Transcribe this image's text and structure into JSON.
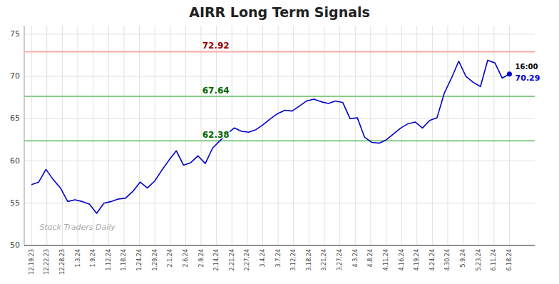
{
  "chart_data": {
    "type": "line",
    "title": "AIRR Long Term Signals",
    "color": "#0000cc",
    "values": [
      57.2,
      57.5,
      59.0,
      57.8,
      56.8,
      55.2,
      55.4,
      55.2,
      54.9,
      53.8,
      55.0,
      55.2,
      55.5,
      55.6,
      56.4,
      57.5,
      56.8,
      57.6,
      58.9,
      60.1,
      61.2,
      59.5,
      59.8,
      60.6,
      59.7,
      61.5,
      62.38,
      63.2,
      63.9,
      63.5,
      63.4,
      63.7,
      64.3,
      65.0,
      65.6,
      66.0,
      65.9,
      66.5,
      67.1,
      67.3,
      67.0,
      66.8,
      67.1,
      66.9,
      65.0,
      65.1,
      62.8,
      62.2,
      62.1,
      62.5,
      63.2,
      63.9,
      64.4,
      64.6,
      63.9,
      64.8,
      65.1,
      68.0,
      69.8,
      71.8,
      70.0,
      69.3,
      68.8,
      71.9,
      71.6,
      69.8,
      70.29
    ],
    "xlim": [
      -1,
      69.5
    ],
    "xticks": [
      {
        "value": 0,
        "label": "12.19.23"
      },
      {
        "value": 2.129032,
        "label": "12.22.23"
      },
      {
        "value": 4.258065,
        "label": "12.28.23"
      },
      {
        "value": 6.387097,
        "label": "1.3.24"
      },
      {
        "value": 8.516129,
        "label": "1.9.24"
      },
      {
        "value": 10.645161,
        "label": "1.12.24"
      },
      {
        "value": 12.774194,
        "label": "1.18.24"
      },
      {
        "value": 14.903226,
        "label": "1.24.24"
      },
      {
        "value": 17.032258,
        "label": "1.29.24"
      },
      {
        "value": 19.16129,
        "label": "2.1.24"
      },
      {
        "value": 21.290323,
        "label": "2.6.24"
      },
      {
        "value": 23.419355,
        "label": "2.9.24"
      },
      {
        "value": 25.548387,
        "label": "2.14.24"
      },
      {
        "value": 27.677419,
        "label": "2.21.24"
      },
      {
        "value": 29.806452,
        "label": "2.27.24"
      },
      {
        "value": 31.935484,
        "label": "3.4.24"
      },
      {
        "value": 34.064516,
        "label": "3.7.24"
      },
      {
        "value": 36.193548,
        "label": "3.12.24"
      },
      {
        "value": 38.322581,
        "label": "3.18.24"
      },
      {
        "value": 40.451613,
        "label": "3.21.24"
      },
      {
        "value": 42.580645,
        "label": "3.27.24"
      },
      {
        "value": 44.709677,
        "label": "4.3.24"
      },
      {
        "value": 46.83871,
        "label": "4.8.24"
      },
      {
        "value": 48.967742,
        "label": "4.11.24"
      },
      {
        "value": 51.096774,
        "label": "4.16.24"
      },
      {
        "value": 53.225806,
        "label": "4.19.24"
      },
      {
        "value": 55.354839,
        "label": "4.24.24"
      },
      {
        "value": 57.483871,
        "label": "4.30.24"
      },
      {
        "value": 59.612903,
        "label": "5.9.24"
      },
      {
        "value": 61.741935,
        "label": "5.23.24"
      },
      {
        "value": 63.870968,
        "label": "6.11.24"
      },
      {
        "value": 66,
        "label": "6.18.24"
      }
    ],
    "ylim": [
      50,
      76
    ],
    "yticks": [
      50,
      55,
      60,
      65,
      70,
      75
    ],
    "grid": true,
    "hlines": [
      {
        "value": 72.92,
        "color": "#ffaaaa",
        "label_color": "#990000"
      },
      {
        "value": 67.64,
        "color": "#88cc88",
        "label_color": "#006600"
      },
      {
        "value": 62.38,
        "color": "#88cc88",
        "label_color": "#006600"
      }
    ],
    "end_label": "16:00",
    "watermark": "Stock Traders Daily"
  }
}
